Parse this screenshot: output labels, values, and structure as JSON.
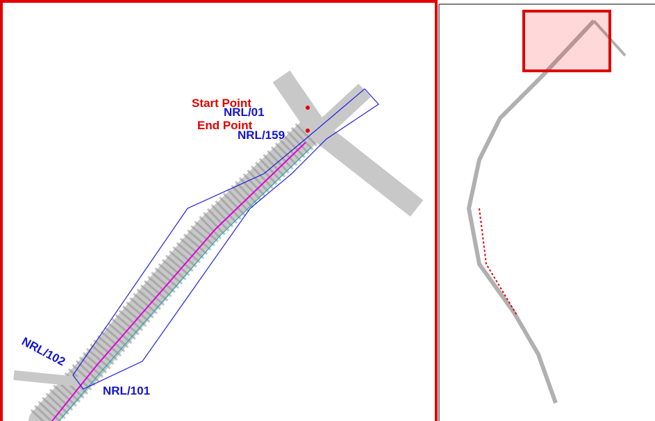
{
  "labels": {
    "start_point": "Start Point",
    "end_point": "End Point",
    "nrl_01": "NRL/01",
    "nrl_159": "NRL/159",
    "nrl_102": "NRL/102",
    "nrl_101": "NRL/101"
  }
}
